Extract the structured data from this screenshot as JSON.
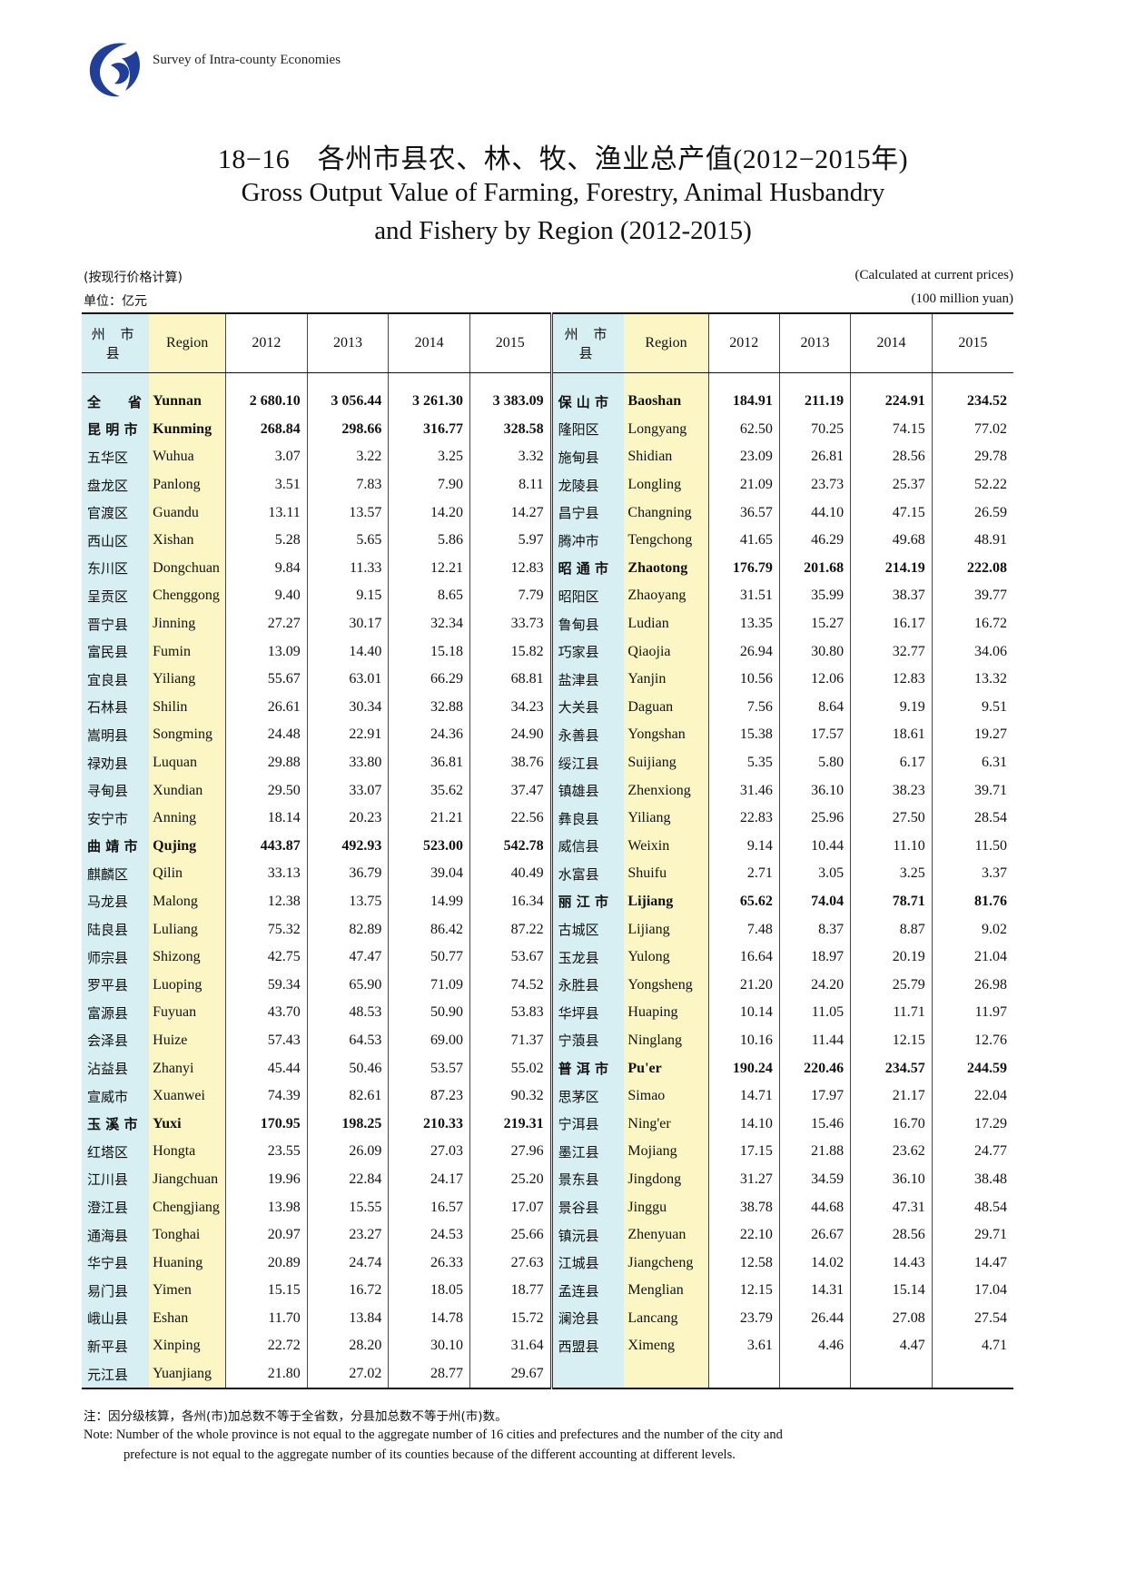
{
  "header": {
    "series_title": "Survey of Intra-county Economies",
    "logo_icon": "swirl-logo-icon"
  },
  "title": {
    "cn": "18−16　各州市县农、林、牧、渔业总产值(2012−2015年)",
    "en_line1": "Gross Output Value of Farming, Forestry, Animal Husbandry",
    "en_line2": "and Fishery by Region (2012-2015)"
  },
  "meta": {
    "price_cn": "(按现行价格计算)",
    "price_en": "(Calculated at current prices)",
    "unit_cn": "单位：亿元",
    "unit_en": "(100 million yuan)"
  },
  "table": {
    "headers": {
      "cn": "州 市 县",
      "region": "Region",
      "y1": "2012",
      "y2": "2013",
      "y3": "2014",
      "y4": "2015"
    },
    "left": [
      [
        "全　　省",
        "Yunnan",
        "2 680.10",
        "3 056.44",
        "3 261.30",
        "3 383.09",
        true
      ],
      [
        "昆 明 市",
        "Kunming",
        "268.84",
        "298.66",
        "316.77",
        "328.58",
        true
      ],
      [
        "五华区",
        "Wuhua",
        "3.07",
        "3.22",
        "3.25",
        "3.32",
        false
      ],
      [
        "盘龙区",
        "Panlong",
        "3.51",
        "7.83",
        "7.90",
        "8.11",
        false
      ],
      [
        "官渡区",
        "Guandu",
        "13.11",
        "13.57",
        "14.20",
        "14.27",
        false
      ],
      [
        "西山区",
        "Xishan",
        "5.28",
        "5.65",
        "5.86",
        "5.97",
        false
      ],
      [
        "东川区",
        "Dongchuan",
        "9.84",
        "11.33",
        "12.21",
        "12.83",
        false
      ],
      [
        "呈贡区",
        "Chenggong",
        "9.40",
        "9.15",
        "8.65",
        "7.79",
        false
      ],
      [
        "晋宁县",
        "Jinning",
        "27.27",
        "30.17",
        "32.34",
        "33.73",
        false
      ],
      [
        "富民县",
        "Fumin",
        "13.09",
        "14.40",
        "15.18",
        "15.82",
        false
      ],
      [
        "宜良县",
        "Yiliang",
        "55.67",
        "63.01",
        "66.29",
        "68.81",
        false
      ],
      [
        "石林县",
        "Shilin",
        "26.61",
        "30.34",
        "32.88",
        "34.23",
        false
      ],
      [
        "嵩明县",
        "Songming",
        "24.48",
        "22.91",
        "24.36",
        "24.90",
        false
      ],
      [
        "禄劝县",
        "Luquan",
        "29.88",
        "33.80",
        "36.81",
        "38.76",
        false
      ],
      [
        "寻甸县",
        "Xundian",
        "29.50",
        "33.07",
        "35.62",
        "37.47",
        false
      ],
      [
        "安宁市",
        "Anning",
        "18.14",
        "20.23",
        "21.21",
        "22.56",
        false
      ],
      [
        "曲 靖 市",
        "Qujing",
        "443.87",
        "492.93",
        "523.00",
        "542.78",
        true
      ],
      [
        "麒麟区",
        "Qilin",
        "33.13",
        "36.79",
        "39.04",
        "40.49",
        false
      ],
      [
        "马龙县",
        "Malong",
        "12.38",
        "13.75",
        "14.99",
        "16.34",
        false
      ],
      [
        "陆良县",
        "Luliang",
        "75.32",
        "82.89",
        "86.42",
        "87.22",
        false
      ],
      [
        "师宗县",
        "Shizong",
        "42.75",
        "47.47",
        "50.77",
        "53.67",
        false
      ],
      [
        "罗平县",
        "Luoping",
        "59.34",
        "65.90",
        "71.09",
        "74.52",
        false
      ],
      [
        "富源县",
        "Fuyuan",
        "43.70",
        "48.53",
        "50.90",
        "53.83",
        false
      ],
      [
        "会泽县",
        "Huize",
        "57.43",
        "64.53",
        "69.00",
        "71.37",
        false
      ],
      [
        "沾益县",
        "Zhanyi",
        "45.44",
        "50.46",
        "53.57",
        "55.02",
        false
      ],
      [
        "宣威市",
        "Xuanwei",
        "74.39",
        "82.61",
        "87.23",
        "90.32",
        false
      ],
      [
        "玉 溪 市",
        "Yuxi",
        "170.95",
        "198.25",
        "210.33",
        "219.31",
        true
      ],
      [
        "红塔区",
        "Hongta",
        "23.55",
        "26.09",
        "27.03",
        "27.96",
        false
      ],
      [
        "江川县",
        "Jiangchuan",
        "19.96",
        "22.84",
        "24.17",
        "25.20",
        false
      ],
      [
        "澄江县",
        "Chengjiang",
        "13.98",
        "15.55",
        "16.57",
        "17.07",
        false
      ],
      [
        "通海县",
        "Tonghai",
        "20.97",
        "23.27",
        "24.53",
        "25.66",
        false
      ],
      [
        "华宁县",
        "Huaning",
        "20.89",
        "24.74",
        "26.33",
        "27.63",
        false
      ],
      [
        "易门县",
        "Yimen",
        "15.15",
        "16.72",
        "18.05",
        "18.77",
        false
      ],
      [
        "峨山县",
        "Eshan",
        "11.70",
        "13.84",
        "14.78",
        "15.72",
        false
      ],
      [
        "新平县",
        "Xinping",
        "22.72",
        "28.20",
        "30.10",
        "31.64",
        false
      ],
      [
        "元江县",
        "Yuanjiang",
        "21.80",
        "27.02",
        "28.77",
        "29.67",
        false
      ]
    ],
    "right": [
      [
        "保 山 市",
        "Baoshan",
        "184.91",
        "211.19",
        "224.91",
        "234.52",
        true
      ],
      [
        "隆阳区",
        "Longyang",
        "62.50",
        "70.25",
        "74.15",
        "77.02",
        false
      ],
      [
        "施甸县",
        "Shidian",
        "23.09",
        "26.81",
        "28.56",
        "29.78",
        false
      ],
      [
        "龙陵县",
        "Longling",
        "21.09",
        "23.73",
        "25.37",
        "52.22",
        false
      ],
      [
        "昌宁县",
        "Changning",
        "36.57",
        "44.10",
        "47.15",
        "26.59",
        false
      ],
      [
        "腾冲市",
        "Tengchong",
        "41.65",
        "46.29",
        "49.68",
        "48.91",
        false
      ],
      [
        "昭 通 市",
        "Zhaotong",
        "176.79",
        "201.68",
        "214.19",
        "222.08",
        true
      ],
      [
        "昭阳区",
        "Zhaoyang",
        "31.51",
        "35.99",
        "38.37",
        "39.77",
        false
      ],
      [
        "鲁甸县",
        "Ludian",
        "13.35",
        "15.27",
        "16.17",
        "16.72",
        false
      ],
      [
        "巧家县",
        "Qiaojia",
        "26.94",
        "30.80",
        "32.77",
        "34.06",
        false
      ],
      [
        "盐津县",
        "Yanjin",
        "10.56",
        "12.06",
        "12.83",
        "13.32",
        false
      ],
      [
        "大关县",
        "Daguan",
        "7.56",
        "8.64",
        "9.19",
        "9.51",
        false
      ],
      [
        "永善县",
        "Yongshan",
        "15.38",
        "17.57",
        "18.61",
        "19.27",
        false
      ],
      [
        "绥江县",
        "Suijiang",
        "5.35",
        "5.80",
        "6.17",
        "6.31",
        false
      ],
      [
        "镇雄县",
        "Zhenxiong",
        "31.46",
        "36.10",
        "38.23",
        "39.71",
        false
      ],
      [
        "彝良县",
        "Yiliang",
        "22.83",
        "25.96",
        "27.50",
        "28.54",
        false
      ],
      [
        "威信县",
        "Weixin",
        "9.14",
        "10.44",
        "11.10",
        "11.50",
        false
      ],
      [
        "水富县",
        "Shuifu",
        "2.71",
        "3.05",
        "3.25",
        "3.37",
        false
      ],
      [
        "丽 江 市",
        "Lijiang",
        "65.62",
        "74.04",
        "78.71",
        "81.76",
        true
      ],
      [
        "古城区",
        "Lijiang",
        "7.48",
        "8.37",
        "8.87",
        "9.02",
        false
      ],
      [
        "玉龙县",
        "Yulong",
        "16.64",
        "18.97",
        "20.19",
        "21.04",
        false
      ],
      [
        "永胜县",
        "Yongsheng",
        "21.20",
        "24.20",
        "25.79",
        "26.98",
        false
      ],
      [
        "华坪县",
        "Huaping",
        "10.14",
        "11.05",
        "11.71",
        "11.97",
        false
      ],
      [
        "宁蒗县",
        "Ninglang",
        "10.16",
        "11.44",
        "12.15",
        "12.76",
        false
      ],
      [
        "普 洱 市",
        "Pu'er",
        "190.24",
        "220.46",
        "234.57",
        "244.59",
        true
      ],
      [
        "思茅区",
        "Simao",
        "14.71",
        "17.97",
        "21.17",
        "22.04",
        false
      ],
      [
        "宁洱县",
        "Ning'er",
        "14.10",
        "15.46",
        "16.70",
        "17.29",
        false
      ],
      [
        "墨江县",
        "Mojiang",
        "17.15",
        "21.88",
        "23.62",
        "24.77",
        false
      ],
      [
        "景东县",
        "Jingdong",
        "31.27",
        "34.59",
        "36.10",
        "38.48",
        false
      ],
      [
        "景谷县",
        "Jinggu",
        "38.78",
        "44.68",
        "47.31",
        "48.54",
        false
      ],
      [
        "镇沅县",
        "Zhenyuan",
        "22.10",
        "26.67",
        "28.56",
        "29.71",
        false
      ],
      [
        "江城县",
        "Jiangcheng",
        "12.58",
        "14.02",
        "14.43",
        "14.47",
        false
      ],
      [
        "孟连县",
        "Menglian",
        "12.15",
        "14.31",
        "15.14",
        "17.04",
        false
      ],
      [
        "澜沧县",
        "Lancang",
        "23.79",
        "26.44",
        "27.08",
        "27.54",
        false
      ],
      [
        "西盟县",
        "Ximeng",
        "3.61",
        "4.46",
        "4.47",
        "4.71",
        false
      ],
      [
        "",
        "",
        "",
        "",
        "",
        "",
        false
      ]
    ]
  },
  "notes": {
    "cn": "注：因分级核算，各州(市)加总数不等于全省数，分县加总数不等于州(市)数。",
    "en_line1": "Note: Number of the whole province is not equal to the aggregate number of 16 cities and prefectures and the number of the city and",
    "en_line2": "prefecture is not equal to the aggregate number of its counties because of the different accounting at different levels."
  }
}
